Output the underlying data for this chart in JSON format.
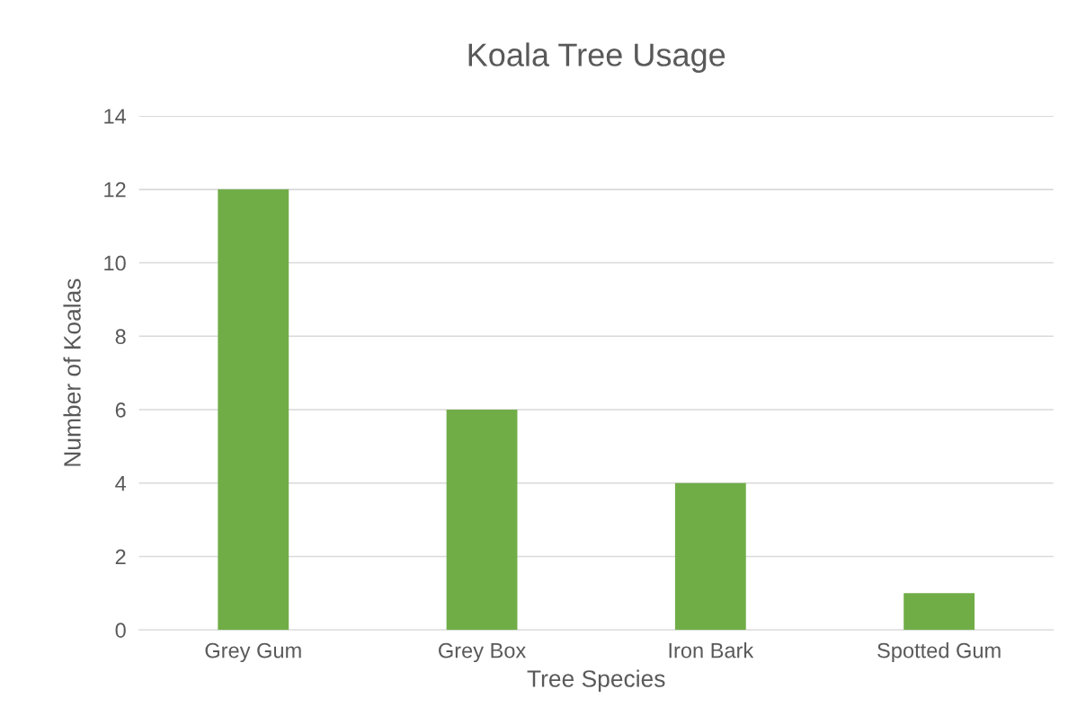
{
  "chart_data": {
    "type": "bar",
    "title": "Koala Tree Usage",
    "xlabel": "Tree Species",
    "ylabel": "Number of Koalas",
    "categories": [
      "Grey Gum",
      "Grey Box",
      "Iron Bark",
      "Spotted Gum"
    ],
    "values": [
      12,
      6,
      4,
      1
    ],
    "color": "#70ad47",
    "ylim": [
      0,
      14
    ],
    "yticks": [
      0,
      2,
      4,
      6,
      8,
      10,
      12,
      14
    ],
    "grid": "y",
    "legend": false
  }
}
